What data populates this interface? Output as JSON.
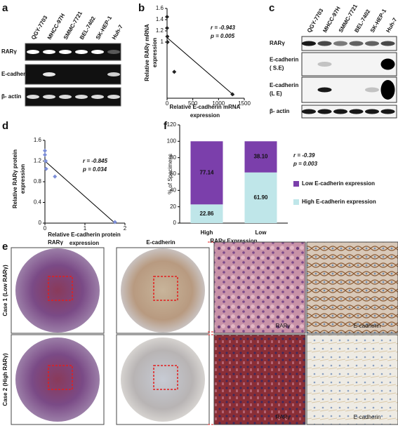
{
  "panel_labels": [
    "a",
    "b",
    "c",
    "d",
    "e",
    "f"
  ],
  "gel_a": {
    "lanes": [
      "QGY-7703",
      "MHCC-97H",
      "SMMC-7721",
      "BEL-7402",
      "SK-HEP-1",
      "Huh-7"
    ],
    "rows": [
      [
        "RARγ"
      ],
      [
        "E-cadherin"
      ],
      [
        "β- actin"
      ]
    ]
  },
  "blot_c": {
    "lanes": [
      "QGY-7703",
      "MHCC-97H",
      "SMMC-7721",
      "BEL-7402",
      "SK-HEP-1",
      "Huh-7"
    ],
    "rows": [
      [
        "RARγ"
      ],
      [
        "E-cadherin",
        "( S.E)"
      ],
      [
        "E-cadherin",
        "(L E)"
      ],
      [
        "β- actin"
      ]
    ]
  },
  "chart_data": [
    {
      "type": "scatter",
      "xlabel": [
        "Relative E-cadherin mRNA",
        "expression"
      ],
      "ylabel": [
        "Relative RARγ mRNA",
        "expression"
      ],
      "x": [
        0,
        0,
        5,
        10,
        140,
        1270
      ],
      "values": [
        1.45,
        1.25,
        1.1,
        1.0,
        0.47,
        0.07
      ],
      "color": "#222",
      "trendline": {
        "x": [
          0,
          1300
        ],
        "values": [
          1.08,
          0.05
        ]
      },
      "xlim": [
        0,
        1500
      ],
      "xticks": [
        0,
        500,
        1000,
        1500
      ],
      "ylim": [
        0,
        1.6
      ],
      "yticks": [
        1,
        1.2,
        1.4,
        1.6
      ],
      "annotations": [
        "r = -0.943",
        "p = 0.005"
      ]
    },
    {
      "type": "scatter",
      "xlabel": [
        "Relative E-cadherin protein",
        "expression"
      ],
      "ylabel": [
        "Relative RARγ protein",
        "expression"
      ],
      "x": [
        0,
        0,
        0.02,
        0.03,
        0.25,
        1.75
      ],
      "values": [
        1.4,
        1.32,
        1.2,
        1.05,
        0.9,
        0.02
      ],
      "color": "#7d8fd8",
      "trendline": {
        "x": [
          0,
          1.75
        ],
        "values": [
          1.2,
          0
        ]
      },
      "xlim": [
        0,
        2
      ],
      "xticks": [
        0,
        1,
        2
      ],
      "ylim": [
        0,
        1.6
      ],
      "yticks": [
        0,
        0.4,
        0.8,
        1.2,
        1.6
      ],
      "annotations": [
        "r = -0.845",
        "p = 0.034"
      ]
    },
    {
      "type": "stacked_bar",
      "ylabel": "% of Specimens",
      "xlabel": "RARγ Expression",
      "categories": [
        "High",
        "Low"
      ],
      "series": [
        {
          "name": "High E-cadherin expression",
          "color": "#bfe6e9",
          "values": [
            22.86,
            61.9
          ],
          "value_labels": [
            "22.86",
            "61.90"
          ]
        },
        {
          "name": "Low E-cadherin expression",
          "color": "#7b3fab",
          "values": [
            77.14,
            38.1
          ],
          "value_labels": [
            "77.14",
            "38.10"
          ]
        }
      ],
      "ylim": [
        0,
        120
      ],
      "yticks": [
        0,
        20,
        40,
        60,
        80,
        100,
        120
      ],
      "annotations": [
        "r = -0.39",
        "p = 0.003"
      ]
    }
  ],
  "histology": {
    "columns": [
      "RARγ",
      "E-cadherin"
    ],
    "rows": [
      "Case 1 (Low RARγ)",
      "Case 2 (High RARγ)"
    ],
    "zoom_labels": [
      [
        "RARγ",
        "E-cadherin"
      ],
      [
        "RARγ",
        "E-cadherin"
      ]
    ]
  }
}
